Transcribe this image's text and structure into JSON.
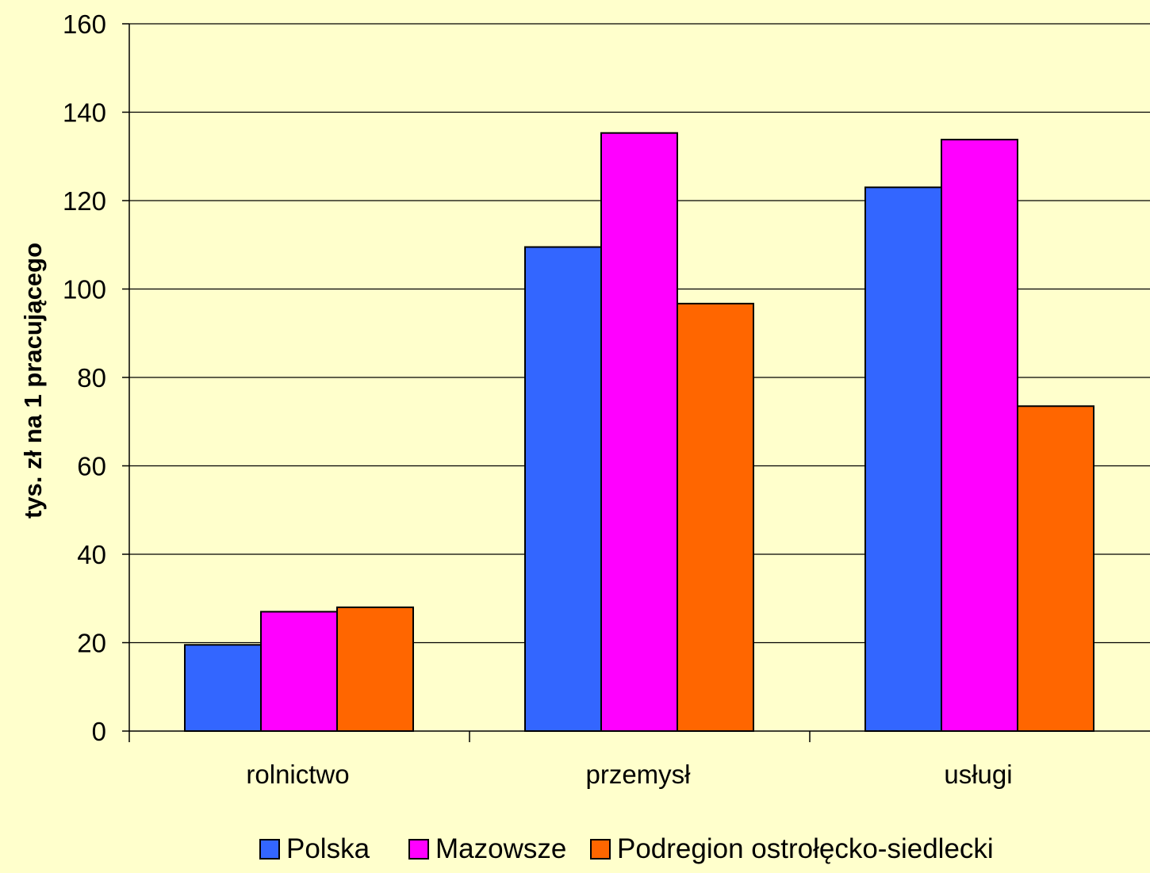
{
  "chart_data": {
    "type": "bar",
    "categories": [
      "rolnictwo",
      "przemysł",
      "usługi"
    ],
    "series": [
      {
        "name": "Polska",
        "values": [
          19.5,
          109.5,
          123
        ],
        "color": "#3366FF"
      },
      {
        "name": "Mazowsze",
        "values": [
          27,
          135.3,
          133.8
        ],
        "color": "#FF00FF"
      },
      {
        "name": "Podregion ostrołęcko-siedlecki",
        "values": [
          28,
          96.7,
          73.5
        ],
        "color": "#FF6600"
      }
    ],
    "title": "",
    "xlabel": "",
    "ylabel": "tys. zł na 1 pracującego",
    "ylim": [
      0,
      160
    ],
    "yticks": [
      0,
      20,
      40,
      60,
      80,
      100,
      120,
      140,
      160
    ],
    "grid": true,
    "legend_position": "bottom",
    "colors": {
      "background": "#FFFFCC",
      "gridline": "#000000",
      "bar_outline": "#000000"
    }
  }
}
